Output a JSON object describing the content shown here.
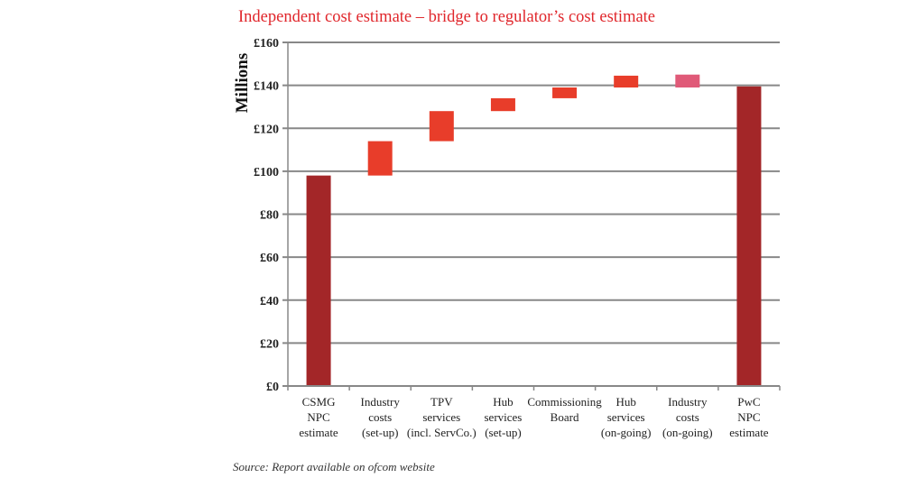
{
  "chart_data": {
    "type": "bar",
    "subtype": "waterfall",
    "title": "Independent cost estimate – bridge to regulator’s cost estimate",
    "ylabel": "Millions",
    "xlabel": "",
    "ylim": [
      0,
      160
    ],
    "yticks": [
      0,
      20,
      40,
      60,
      80,
      100,
      120,
      140,
      160
    ],
    "ytick_labels": [
      "£0",
      "£20",
      "£40",
      "£60",
      "£80",
      "£100",
      "£120",
      "£140",
      "£160"
    ],
    "grid": true,
    "categories": [
      [
        "CSMG",
        "NPC",
        "estimate"
      ],
      [
        "Industry",
        "costs",
        "(set-up)"
      ],
      [
        "TPV",
        "services",
        "(incl. ServCo.)"
      ],
      [
        "Hub",
        "services",
        "(set-up)"
      ],
      [
        "Commissioning",
        "Board"
      ],
      [
        "Hub",
        "services",
        "(on-going)"
      ],
      [
        "Industry",
        "costs",
        "(on-going)"
      ],
      [
        "PwC",
        "NPC",
        "estimate"
      ]
    ],
    "bars": [
      {
        "label": "CSMG NPC estimate",
        "base": 0,
        "value": 98,
        "kind": "total"
      },
      {
        "label": "Industry costs (set-up)",
        "base": 98,
        "value": 16,
        "kind": "increase"
      },
      {
        "label": "TPV services (incl. ServCo.)",
        "base": 114,
        "value": 14,
        "kind": "increase"
      },
      {
        "label": "Hub services (set-up)",
        "base": 128,
        "value": 6,
        "kind": "increase"
      },
      {
        "label": "Commissioning Board",
        "base": 134,
        "value": 5,
        "kind": "increase"
      },
      {
        "label": "Hub services (on-going)",
        "base": 139,
        "value": 5.5,
        "kind": "increase"
      },
      {
        "label": "Industry costs (on-going)",
        "base": 139,
        "value": 6,
        "kind": "adjustment"
      },
      {
        "label": "PwC NPC estimate",
        "base": 0,
        "value": 139.5,
        "kind": "total"
      }
    ],
    "colors": {
      "total": "#a32628",
      "increase": "#e83d2a",
      "adjustment": "#e05a78",
      "grid": "#888888"
    }
  },
  "source_note": "Source: Report available on ofcom website"
}
